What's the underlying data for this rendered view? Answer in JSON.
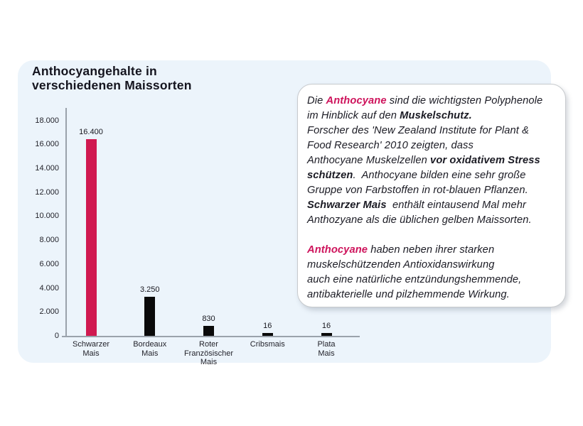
{
  "page": {
    "background": "#FFFFFF",
    "card_background": "#ECF4FB",
    "accent_text": "#CE145C",
    "bar_accent": "#D01950",
    "bar_default": "#0A0A0A",
    "axis_color": "#9AA2AB",
    "infobox_background": "#FFFFFF",
    "infobox_border": "#C7CACD"
  },
  "title": "Anthocyangehalte in\nverschiedenen Maissorten",
  "chart_data": {
    "type": "bar",
    "title": "Anthocyangehalte in verschiedenen Maissorten",
    "xlabel": "",
    "ylabel": "",
    "categories": [
      "Schwarzer\nMais",
      "Bordeaux\nMais",
      "Roter\nFranzösischer\nMais",
      "Cribsmais",
      "Plata\nMais"
    ],
    "values": [
      16400,
      3250,
      830,
      16,
      16
    ],
    "value_labels": [
      "16.400",
      "3.250",
      "830",
      "16",
      "16"
    ],
    "bar_colors": [
      "#D01950",
      "#0A0A0A",
      "#0A0A0A",
      "#0A0A0A",
      "#0A0A0A"
    ],
    "ylim": [
      0,
      18000
    ],
    "ytick_step": 2000,
    "ytick_labels": [
      "0",
      "2.000",
      "4.000",
      "6.000",
      "8.000",
      "10.000",
      "12.000",
      "14.000",
      "16.000",
      "18.000"
    ],
    "grid": false,
    "legend": null
  },
  "infobox": {
    "lines": [
      [
        {
          "t": "Die "
        },
        {
          "t": "Anthocyane",
          "b": true,
          "c": true
        },
        {
          "t": " sind die wichtigsten Polyphenole"
        }
      ],
      [
        {
          "t": "im Hinblick auf den "
        },
        {
          "t": "Muskelschutz.",
          "b": true
        }
      ],
      [
        {
          "t": "Forscher des 'New Zealand Institute for Plant &"
        }
      ],
      [
        {
          "t": "Food Research' 2010 zeigten, dass"
        }
      ],
      [
        {
          "t": "Anthocyane Muskelzellen "
        },
        {
          "t": "vor oxidativem Stress",
          "b": true
        }
      ],
      [
        {
          "t": "schützen",
          "b": true
        },
        {
          "t": ".  Anthocyane bilden eine sehr große"
        }
      ],
      [
        {
          "t": "Gruppe von Farbstoffen in rot-blauen Pflanzen."
        }
      ],
      [
        {
          "t": "Schwarzer Mais",
          "b": true
        },
        {
          "t": "  enthält eintausend Mal mehr"
        }
      ],
      [
        {
          "t": "Anthozyane als die üblichen gelben Maissorten."
        }
      ],
      [],
      [
        {
          "t": "Anthocyane",
          "b": true,
          "c": true
        },
        {
          "t": " haben neben ihrer starken"
        }
      ],
      [
        {
          "t": "muskelschützenden Antioxidanswirkung"
        }
      ],
      [
        {
          "t": "auch eine natürliche entzündungshemmende,"
        }
      ],
      [
        {
          "t": "antibakterielle und pilzhemmende Wirkung."
        }
      ]
    ]
  }
}
